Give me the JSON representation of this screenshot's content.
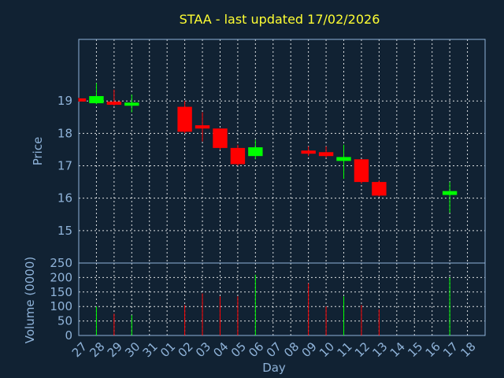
{
  "chart_data": {
    "type": "candlestick",
    "title": "STAA - last updated 17/02/2026",
    "xlabel": "Day",
    "x_ticks": [
      "27",
      "28",
      "29",
      "30",
      "31",
      "01",
      "02",
      "03",
      "04",
      "05",
      "06",
      "07",
      "08",
      "09",
      "10",
      "11",
      "12",
      "13",
      "14",
      "15",
      "16",
      "17",
      "18"
    ],
    "price_panel": {
      "ylabel": "Price",
      "ylim": [
        14.0,
        20.9
      ],
      "y_ticks": [
        "15",
        "16",
        "17",
        "18",
        "19"
      ],
      "y_tick_values": [
        15,
        16,
        17,
        18,
        19
      ],
      "up_color": "#00ff00",
      "down_color": "#ff0000"
    },
    "volume_panel": {
      "ylabel": "Volume (0000)",
      "ylim": [
        0,
        250
      ],
      "y_ticks": [
        "0",
        "50",
        "100",
        "150",
        "200",
        "250"
      ],
      "y_tick_values": [
        0,
        50,
        100,
        150,
        200,
        250
      ]
    },
    "grid": true,
    "candles": [
      {
        "day": "27",
        "open": 19.08,
        "close": 19.0,
        "high": 19.1,
        "low": 18.98,
        "volume": 0
      },
      {
        "day": "28",
        "open": 18.93,
        "close": 19.15,
        "high": 19.55,
        "low": 18.9,
        "volume": 100
      },
      {
        "day": "29",
        "open": 18.98,
        "close": 18.92,
        "high": 19.35,
        "low": 18.85,
        "volume": 75
      },
      {
        "day": "30",
        "open": 18.92,
        "close": 18.95,
        "high": 19.2,
        "low": 18.65,
        "volume": 70
      },
      {
        "day": "02",
        "open": 18.82,
        "close": 18.05,
        "high": 19.0,
        "low": 18.0,
        "volume": 105
      },
      {
        "day": "03",
        "open": 18.25,
        "close": 18.15,
        "high": 18.65,
        "low": 17.75,
        "volume": 145
      },
      {
        "day": "04",
        "open": 18.15,
        "close": 17.55,
        "high": 18.15,
        "low": 17.5,
        "volume": 135
      },
      {
        "day": "05",
        "open": 17.55,
        "close": 17.05,
        "high": 17.65,
        "low": 17.0,
        "volume": 135
      },
      {
        "day": "06",
        "open": 17.3,
        "close": 17.57,
        "high": 17.8,
        "low": 17.2,
        "volume": 210
      },
      {
        "day": "09",
        "open": 17.47,
        "close": 17.38,
        "high": 17.6,
        "low": 17.3,
        "volume": 180
      },
      {
        "day": "10",
        "open": 17.42,
        "close": 17.3,
        "high": 17.6,
        "low": 17.25,
        "volume": 100
      },
      {
        "day": "11",
        "open": 17.15,
        "close": 17.27,
        "high": 17.65,
        "low": 16.6,
        "volume": 135
      },
      {
        "day": "12",
        "open": 17.2,
        "close": 16.5,
        "high": 17.2,
        "low": 16.45,
        "volume": 105
      },
      {
        "day": "13",
        "open": 16.5,
        "close": 16.08,
        "high": 16.55,
        "low": 16.05,
        "volume": 90
      },
      {
        "day": "17",
        "open": 16.1,
        "close": 16.22,
        "high": 16.5,
        "low": 15.55,
        "volume": 200
      }
    ]
  }
}
